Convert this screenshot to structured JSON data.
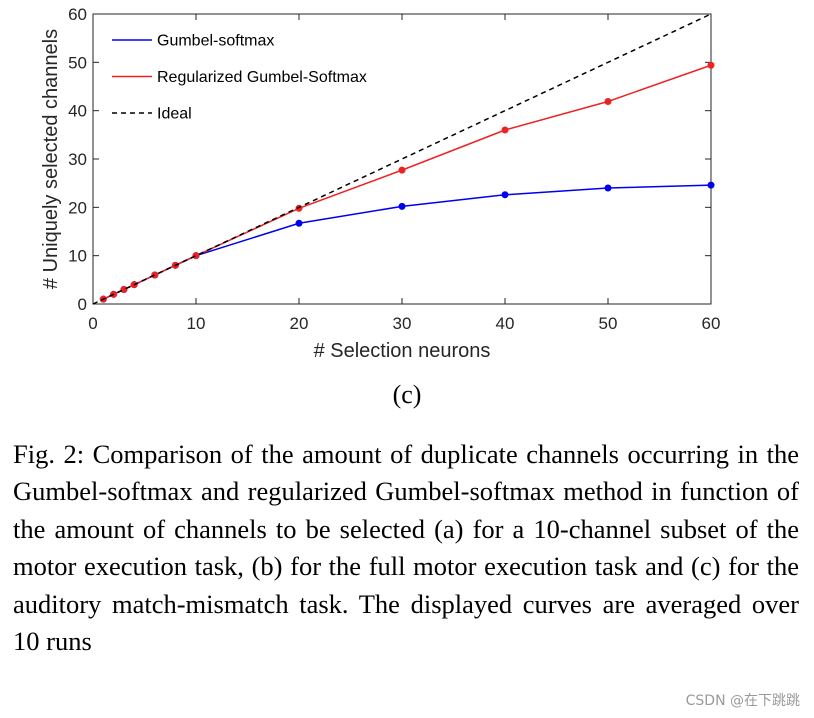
{
  "chart_data": {
    "type": "line",
    "title": "",
    "xlabel": "# Selection neurons",
    "ylabel": "# Uniquely selected channels",
    "xlim": [
      0,
      60
    ],
    "ylim": [
      0,
      60
    ],
    "xticks": [
      0,
      10,
      20,
      30,
      40,
      50,
      60
    ],
    "yticks": [
      0,
      10,
      20,
      30,
      40,
      50,
      60
    ],
    "grid": false,
    "legend_position": "top-left",
    "series": [
      {
        "name": "Gumbel-softmax",
        "color": "#0000ee",
        "style": "solid",
        "markers": true,
        "x": [
          1,
          2,
          3,
          4,
          6,
          8,
          10,
          20,
          30,
          40,
          50,
          60
        ],
        "y": [
          1,
          2,
          3,
          4,
          6,
          8,
          10,
          16.7,
          20.2,
          22.6,
          24.0,
          24.6
        ]
      },
      {
        "name": "Regularized Gumbel-Softmax",
        "color": "#ee2222",
        "style": "solid",
        "markers": true,
        "x": [
          1,
          2,
          3,
          4,
          6,
          8,
          10,
          20,
          30,
          40,
          50,
          60
        ],
        "y": [
          1,
          2,
          3,
          4,
          6,
          8,
          10,
          19.8,
          27.7,
          36.0,
          41.9,
          49.4
        ]
      },
      {
        "name": "Ideal",
        "color": "#000000",
        "style": "dashed",
        "markers": false,
        "x": [
          0,
          60
        ],
        "y": [
          0,
          60
        ]
      }
    ]
  },
  "subfigure_label": "(c)",
  "caption": "Fig. 2: Comparison of the amount of duplicate channels occurring in the Gumbel-softmax and regularized Gumbel-softmax method in function of the amount of channels to be selected (a) for a 10-channel subset of the motor execution task, (b) for the full motor execution task and (c) for the auditory match-mismatch task. The displayed curves are averaged over 10 runs",
  "watermark": "CSDN @在下跳跳"
}
